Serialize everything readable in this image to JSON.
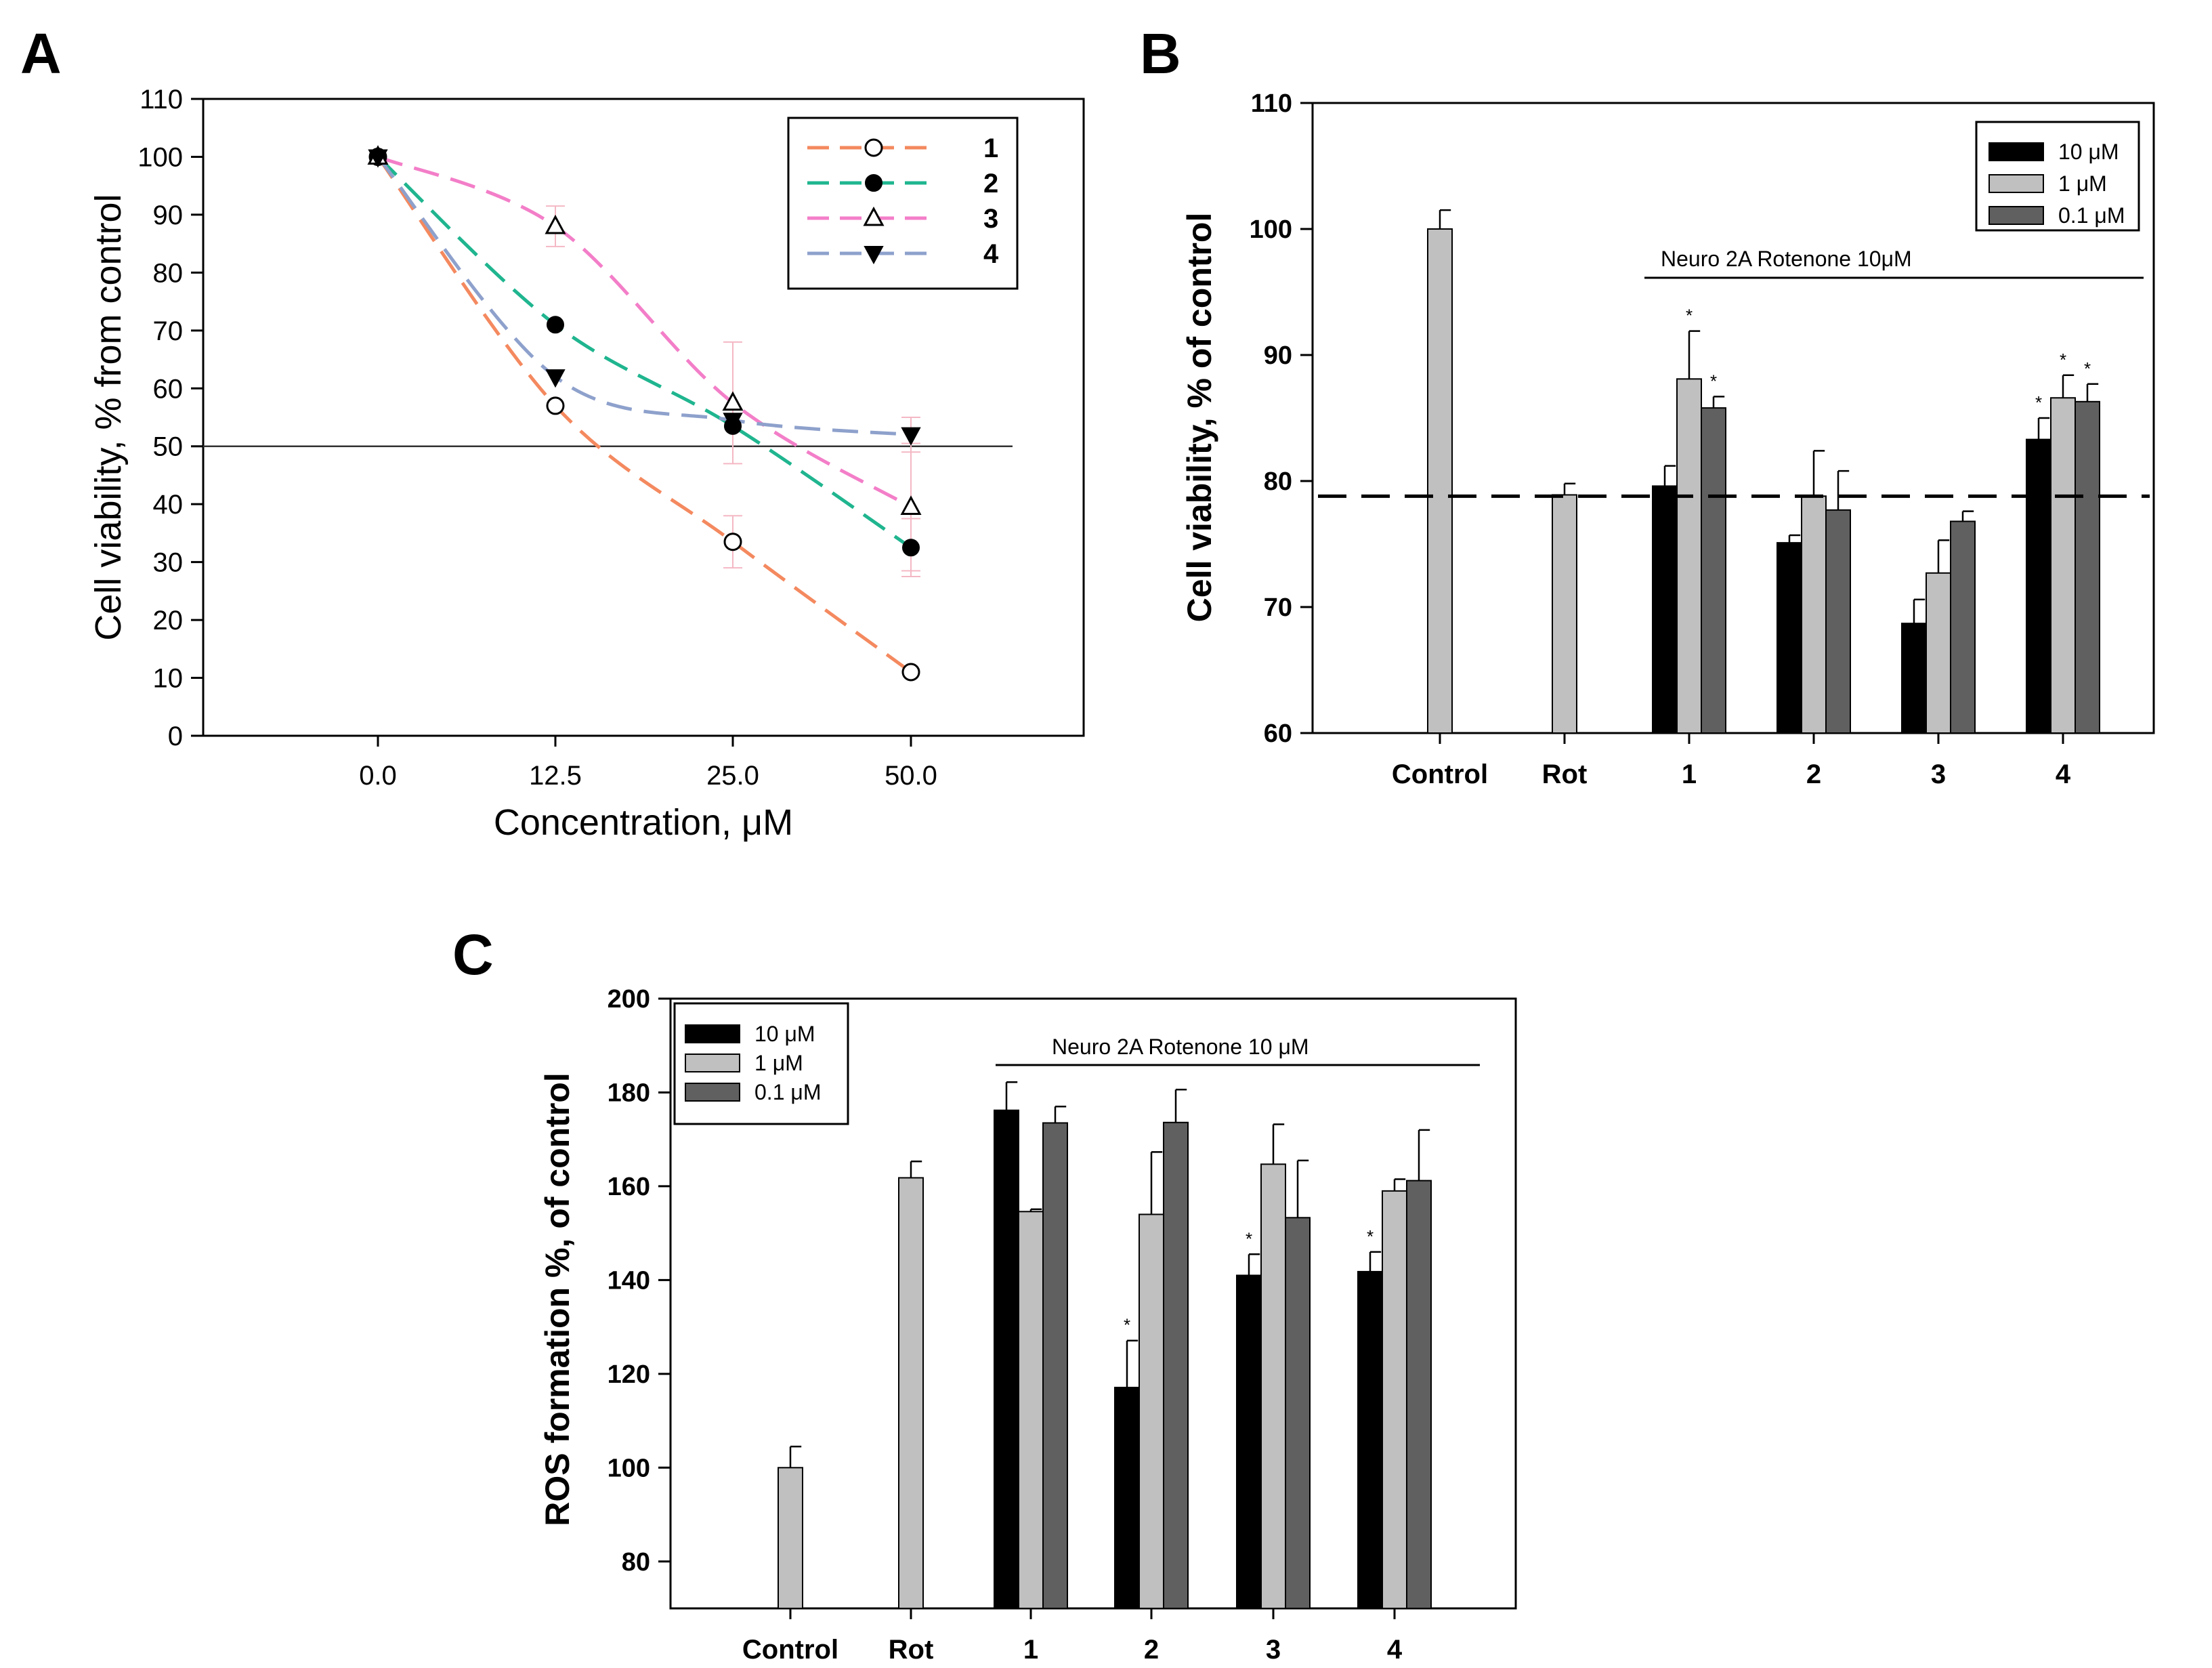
{
  "chart_data": [
    {
      "panel": "A",
      "type": "line",
      "x_categories": [
        "0.0",
        "12.5",
        "25.0",
        "50.0"
      ],
      "xlabel": "Concentration, μM",
      "ylabel": "Cell viability, % from control",
      "ylim": [
        0,
        110
      ],
      "yticks": [
        "0",
        "10",
        "20",
        "30",
        "40",
        "50",
        "60",
        "70",
        "80",
        "90",
        "100",
        "110"
      ],
      "reference_line": 50,
      "series": [
        {
          "name": "1",
          "color": "#f4895f",
          "marker": "open-circle",
          "values": [
            100,
            57,
            33.5,
            11
          ],
          "errors": [
            0,
            0,
            4.5,
            0
          ]
        },
        {
          "name": "2",
          "color": "#1fb58f",
          "marker": "filled-circle",
          "values": [
            100,
            71,
            53.5,
            32.5
          ],
          "errors": [
            0,
            0,
            0,
            5
          ]
        },
        {
          "name": "3",
          "color": "#f37ec8",
          "marker": "open-triangle",
          "values": [
            100,
            88,
            57.5,
            39.5
          ],
          "errors": [
            0,
            3.5,
            10.5,
            11
          ]
        },
        {
          "name": "4",
          "color": "#8ea1cc",
          "marker": "filled-triangle-down",
          "values": [
            100,
            62,
            54.5,
            52
          ],
          "errors": [
            0,
            0,
            0,
            3
          ]
        }
      ]
    },
    {
      "panel": "B",
      "type": "bar",
      "ylabel": "Cell viability, % of control",
      "ylim": [
        60,
        110
      ],
      "yticks": [
        "60",
        "70",
        "80",
        "90",
        "100",
        "110"
      ],
      "annotation": "Neuro 2A Rotenone 10μM",
      "reference_line": 78.8,
      "legend": [
        {
          "name": "10 μM",
          "color": "#000000"
        },
        {
          "name": "1 μM",
          "color": "#c0c0c0"
        },
        {
          "name": "0.1 μM",
          "color": "#606060"
        }
      ],
      "groups": [
        {
          "label": "Control",
          "bars": [
            {
              "series": 1,
              "value": 100,
              "error": 1.5,
              "star": false
            }
          ]
        },
        {
          "label": "Rot",
          "bars": [
            {
              "series": 1,
              "value": 78.9,
              "error": 0.9,
              "star": false
            }
          ]
        },
        {
          "label": "1",
          "bars": [
            {
              "series": 0,
              "value": 79.6,
              "error": 1.6,
              "star": false
            },
            {
              "series": 1,
              "value": 88.1,
              "error": 3.8,
              "star": true
            },
            {
              "series": 2,
              "value": 85.8,
              "error": 0.9,
              "star": true
            }
          ]
        },
        {
          "label": "2",
          "bars": [
            {
              "series": 0,
              "value": 75.1,
              "error": 0.6,
              "star": false
            },
            {
              "series": 1,
              "value": 78.8,
              "error": 3.6,
              "star": false
            },
            {
              "series": 2,
              "value": 77.7,
              "error": 3.1,
              "star": false
            }
          ]
        },
        {
          "label": "3",
          "bars": [
            {
              "series": 0,
              "value": 68.7,
              "error": 1.9,
              "star": false
            },
            {
              "series": 1,
              "value": 72.7,
              "error": 2.6,
              "star": false
            },
            {
              "series": 2,
              "value": 76.8,
              "error": 0.8,
              "star": false
            }
          ]
        },
        {
          "label": "4",
          "bars": [
            {
              "series": 0,
              "value": 83.3,
              "error": 1.7,
              "star": true
            },
            {
              "series": 1,
              "value": 86.6,
              "error": 1.8,
              "star": true
            },
            {
              "series": 2,
              "value": 86.3,
              "error": 1.4,
              "star": true
            }
          ]
        }
      ]
    },
    {
      "panel": "C",
      "type": "bar",
      "ylabel": "ROS formation %, of control",
      "ylim": [
        70,
        200
      ],
      "yticks": [
        "80",
        "100",
        "120",
        "140",
        "160",
        "180",
        "200"
      ],
      "annotation": "Neuro 2A Rotenone 10 μM",
      "legend": [
        {
          "name": "10 μM",
          "color": "#000000"
        },
        {
          "name": "1 μM",
          "color": "#c0c0c0"
        },
        {
          "name": "0.1 μM",
          "color": "#606060"
        }
      ],
      "groups": [
        {
          "label": "Control",
          "bars": [
            {
              "series": 1,
              "value": 100,
              "error": 4.5,
              "star": false
            }
          ]
        },
        {
          "label": "Rot",
          "bars": [
            {
              "series": 1,
              "value": 161.8,
              "error": 3.5,
              "star": false
            }
          ]
        },
        {
          "label": "1",
          "bars": [
            {
              "series": 0,
              "value": 176.2,
              "error": 6,
              "star": false
            },
            {
              "series": 1,
              "value": 154.6,
              "error": 0.5,
              "star": false
            },
            {
              "series": 2,
              "value": 173.5,
              "error": 3.5,
              "star": false
            }
          ]
        },
        {
          "label": "2",
          "bars": [
            {
              "series": 0,
              "value": 117.1,
              "error": 10,
              "star": true
            },
            {
              "series": 1,
              "value": 154,
              "error": 13.3,
              "star": false
            },
            {
              "series": 2,
              "value": 173.6,
              "error": 7,
              "star": false
            }
          ]
        },
        {
          "label": "3",
          "bars": [
            {
              "series": 0,
              "value": 141,
              "error": 4.5,
              "star": true
            },
            {
              "series": 1,
              "value": 164.7,
              "error": 8.5,
              "star": false
            },
            {
              "series": 2,
              "value": 153.3,
              "error": 12.2,
              "star": false
            }
          ]
        },
        {
          "label": "4",
          "bars": [
            {
              "series": 0,
              "value": 141.8,
              "error": 4.2,
              "star": true
            },
            {
              "series": 1,
              "value": 159,
              "error": 2.5,
              "star": false
            },
            {
              "series": 2,
              "value": 161.2,
              "error": 10.8,
              "star": false
            }
          ]
        }
      ]
    }
  ],
  "panels": {
    "a_letter": "A",
    "b_letter": "B",
    "c_letter": "C"
  },
  "significance_mark": "*"
}
